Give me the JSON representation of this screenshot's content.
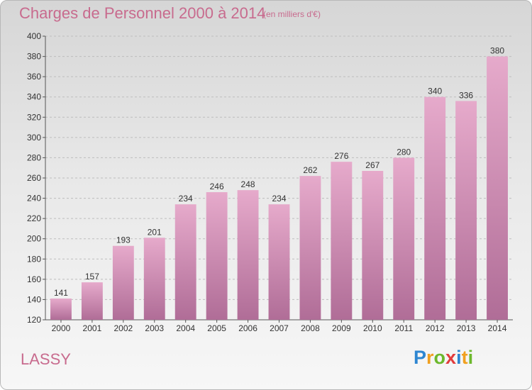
{
  "header": {
    "title": "Charges de Personnel 2000 à 2014",
    "subtitle": "(en milliers d'€)"
  },
  "footer": {
    "commune": "LASSY",
    "logo_text": "Proxiti"
  },
  "colors": {
    "bar_top": "#e6aacb",
    "bar_bottom": "#b06d97",
    "accent_text": "#c86b8e"
  },
  "chart_data": {
    "type": "bar",
    "title": "Charges de Personnel 2000 à 2014",
    "subtitle": "(en milliers d'€)",
    "xlabel": "",
    "ylabel": "",
    "categories": [
      "2000",
      "2001",
      "2002",
      "2003",
      "2004",
      "2005",
      "2006",
      "2007",
      "2008",
      "2009",
      "2010",
      "2011",
      "2012",
      "2013",
      "2014"
    ],
    "values": [
      141,
      157,
      193,
      201,
      234,
      246,
      248,
      234,
      262,
      276,
      267,
      280,
      340,
      336,
      380
    ],
    "ylim": [
      120,
      400
    ],
    "yticks": [
      120,
      140,
      160,
      180,
      200,
      220,
      240,
      260,
      280,
      300,
      320,
      340,
      360,
      380,
      400
    ],
    "grid": true,
    "legend": "none"
  }
}
